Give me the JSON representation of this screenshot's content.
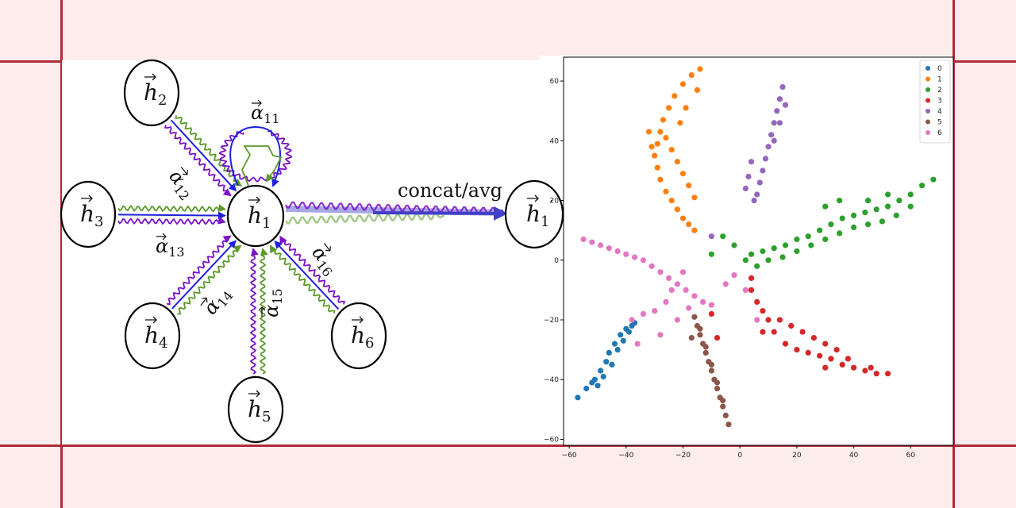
{
  "diagram": {
    "nodes": [
      {
        "id": "h1",
        "base": "h",
        "sub": "1",
        "prime": ""
      },
      {
        "id": "h2",
        "base": "h",
        "sub": "2",
        "prime": ""
      },
      {
        "id": "h3",
        "base": "h",
        "sub": "3",
        "prime": ""
      },
      {
        "id": "h4",
        "base": "h",
        "sub": "4",
        "prime": ""
      },
      {
        "id": "h5",
        "base": "h",
        "sub": "5",
        "prime": ""
      },
      {
        "id": "h6",
        "base": "h",
        "sub": "6",
        "prime": ""
      },
      {
        "id": "h1p",
        "base": "h",
        "sub": "1",
        "prime": "′"
      }
    ],
    "alphas": [
      {
        "id": "a11",
        "base": "α",
        "sub": "11"
      },
      {
        "id": "a12",
        "base": "α",
        "sub": "12"
      },
      {
        "id": "a13",
        "base": "α",
        "sub": "13"
      },
      {
        "id": "a14",
        "base": "α",
        "sub": "14"
      },
      {
        "id": "a15",
        "base": "α",
        "sub": "15"
      },
      {
        "id": "a16",
        "base": "α",
        "sub": "16"
      }
    ],
    "concat_label": "concat/avg",
    "colors": {
      "blue": "#1f1fe0",
      "green": "#5a9a2a",
      "purple": "#7a10c8",
      "arrow": "#4040c8"
    }
  },
  "chart_data": {
    "type": "scatter",
    "title": "",
    "xlabel": "",
    "ylabel": "",
    "xlim": [
      -62,
      75
    ],
    "ylim": [
      -62,
      68
    ],
    "xticks": [
      "−60",
      "−40",
      "−20",
      "0",
      "20",
      "40",
      "60"
    ],
    "yticks": [
      "−60",
      "−40",
      "−20",
      "0",
      "20",
      "40",
      "60"
    ],
    "legend_position": "top-right",
    "series": [
      {
        "name": "0",
        "color": "#1f77b4",
        "points": [
          [
            -57,
            -46
          ],
          [
            -54,
            -43
          ],
          [
            -51,
            -40
          ],
          [
            -49,
            -37
          ],
          [
            -47,
            -34
          ],
          [
            -46,
            -31
          ],
          [
            -44,
            -28
          ],
          [
            -42,
            -25
          ],
          [
            -40,
            -23
          ],
          [
            -38,
            -22
          ],
          [
            -43,
            -30
          ],
          [
            -45,
            -35
          ],
          [
            -48,
            -39
          ],
          [
            -50,
            -42
          ],
          [
            -52,
            -41
          ],
          [
            -41,
            -27
          ],
          [
            -39,
            -24
          ],
          [
            -37,
            -21
          ]
        ]
      },
      {
        "name": "1",
        "color": "#ff7f0e",
        "points": [
          [
            -14,
            64
          ],
          [
            -17,
            62
          ],
          [
            -20,
            59
          ],
          [
            -23,
            55
          ],
          [
            -25,
            51
          ],
          [
            -27,
            47
          ],
          [
            -28,
            43
          ],
          [
            -29,
            39
          ],
          [
            -30,
            35
          ],
          [
            -29,
            31
          ],
          [
            -28,
            27
          ],
          [
            -26,
            23
          ],
          [
            -24,
            20
          ],
          [
            -22,
            17
          ],
          [
            -20,
            14
          ],
          [
            -18,
            12
          ],
          [
            -16,
            10
          ],
          [
            -26,
            41
          ],
          [
            -24,
            37
          ],
          [
            -22,
            33
          ],
          [
            -20,
            29
          ],
          [
            -18,
            25
          ],
          [
            -16,
            21
          ],
          [
            -21,
            46
          ],
          [
            -19,
            51
          ],
          [
            -15,
            57
          ],
          [
            -32,
            43
          ],
          [
            -31,
            38
          ]
        ]
      },
      {
        "name": "2",
        "color": "#2ca02c",
        "points": [
          [
            68,
            27
          ],
          [
            64,
            25
          ],
          [
            60,
            22
          ],
          [
            56,
            20
          ],
          [
            52,
            18
          ],
          [
            48,
            17
          ],
          [
            44,
            16
          ],
          [
            40,
            15
          ],
          [
            36,
            14
          ],
          [
            32,
            12
          ],
          [
            28,
            10
          ],
          [
            24,
            8
          ],
          [
            20,
            7
          ],
          [
            16,
            5
          ],
          [
            12,
            4
          ],
          [
            8,
            3
          ],
          [
            4,
            2
          ],
          [
            2,
            0
          ],
          [
            60,
            18
          ],
          [
            55,
            15
          ],
          [
            50,
            13
          ],
          [
            45,
            12
          ],
          [
            40,
            11
          ],
          [
            35,
            9
          ],
          [
            30,
            7
          ],
          [
            25,
            5
          ],
          [
            20,
            3
          ],
          [
            15,
            1
          ],
          [
            10,
            0
          ],
          [
            6,
            -2
          ],
          [
            -2,
            5
          ],
          [
            -6,
            8
          ],
          [
            -10,
            2
          ],
          [
            30,
            18
          ],
          [
            35,
            20
          ],
          [
            45,
            20
          ],
          [
            52,
            22
          ]
        ]
      },
      {
        "name": "3",
        "color": "#d62728",
        "points": [
          [
            52,
            -38
          ],
          [
            48,
            -38
          ],
          [
            44,
            -37
          ],
          [
            40,
            -36
          ],
          [
            36,
            -35
          ],
          [
            32,
            -33
          ],
          [
            28,
            -32
          ],
          [
            24,
            -31
          ],
          [
            20,
            -30
          ],
          [
            16,
            -28
          ],
          [
            12,
            -24
          ],
          [
            10,
            -20
          ],
          [
            8,
            -17
          ],
          [
            6,
            -14
          ],
          [
            4,
            -10
          ],
          [
            4,
            -6
          ],
          [
            30,
            -28
          ],
          [
            26,
            -26
          ],
          [
            22,
            -24
          ],
          [
            18,
            -22
          ],
          [
            14,
            -20
          ],
          [
            30,
            -36
          ],
          [
            34,
            -30
          ],
          [
            38,
            -33
          ],
          [
            46,
            -36
          ],
          [
            8,
            -24
          ],
          [
            -8,
            -26
          ],
          [
            -10,
            -18
          ]
        ]
      },
      {
        "name": "4",
        "color": "#9467bd",
        "points": [
          [
            15,
            58
          ],
          [
            14,
            54
          ],
          [
            13,
            50
          ],
          [
            12,
            46
          ],
          [
            11,
            42
          ],
          [
            10,
            38
          ],
          [
            9,
            34
          ],
          [
            8,
            30
          ],
          [
            7,
            26
          ],
          [
            6,
            22
          ],
          [
            5,
            20
          ],
          [
            16,
            52
          ],
          [
            14,
            46
          ],
          [
            12,
            40
          ],
          [
            4,
            33
          ],
          [
            3,
            28
          ],
          [
            2,
            24
          ],
          [
            -10,
            8
          ]
        ]
      },
      {
        "name": "5",
        "color": "#8c564b",
        "points": [
          [
            -4,
            -55
          ],
          [
            -5,
            -52
          ],
          [
            -6,
            -49
          ],
          [
            -7,
            -46
          ],
          [
            -8,
            -43
          ],
          [
            -9,
            -40
          ],
          [
            -10,
            -37
          ],
          [
            -11,
            -34
          ],
          [
            -12,
            -31
          ],
          [
            -13,
            -28
          ],
          [
            -14,
            -25
          ],
          [
            -15,
            -22
          ],
          [
            -16,
            -19
          ],
          [
            -6,
            -47
          ],
          [
            -8,
            -41
          ],
          [
            -10,
            -35
          ],
          [
            -12,
            -29
          ],
          [
            -14,
            -23
          ],
          [
            -17,
            -26
          ]
        ]
      },
      {
        "name": "6",
        "color": "#e377c2",
        "points": [
          [
            -55,
            7
          ],
          [
            -52,
            6
          ],
          [
            -49,
            5
          ],
          [
            -46,
            4
          ],
          [
            -43,
            3
          ],
          [
            -40,
            2
          ],
          [
            -37,
            1
          ],
          [
            -34,
            0
          ],
          [
            -31,
            -2
          ],
          [
            -28,
            -4
          ],
          [
            -25,
            -6
          ],
          [
            -22,
            -8
          ],
          [
            -19,
            -10
          ],
          [
            -16,
            -12
          ],
          [
            -13,
            -14
          ],
          [
            -10,
            -15
          ],
          [
            -30,
            -17
          ],
          [
            -26,
            -14
          ],
          [
            -22,
            -20
          ],
          [
            -18,
            -16
          ],
          [
            -34,
            -18
          ],
          [
            -38,
            -20
          ],
          [
            -36,
            -28
          ],
          [
            -28,
            -25
          ],
          [
            -5,
            -8
          ],
          [
            -2,
            -5
          ],
          [
            2,
            -10
          ],
          [
            6,
            -20
          ],
          [
            -24,
            -10
          ],
          [
            -20,
            -4
          ]
        ]
      }
    ]
  }
}
